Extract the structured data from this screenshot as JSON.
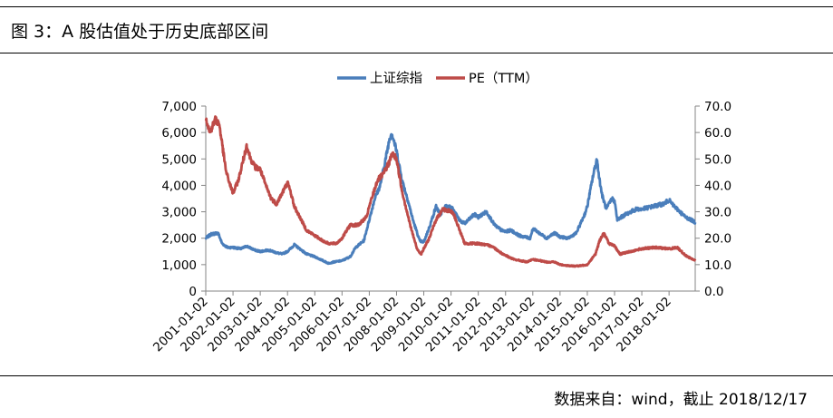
{
  "figure": {
    "caption": "图 3：A 股估值处于历史底部区间",
    "source": "数据来自：wind，截止 2018/12/17"
  },
  "chart_data": {
    "type": "line",
    "title": "",
    "legend_position": "top-center",
    "x_tick_labels": [
      "2001-01-02",
      "2002-01-02",
      "2003-01-02",
      "2004-01-02",
      "2005-01-02",
      "2006-01-02",
      "2007-01-02",
      "2008-01-02",
      "2009-01-02",
      "2010-01-02",
      "2011-01-02",
      "2012-01-02",
      "2013-01-02",
      "2014-01-02",
      "2015-01-02",
      "2016-01-02",
      "2017-01-02",
      "2018-01-02"
    ],
    "x_range": [
      2001.0,
      2018.96
    ],
    "y_left": {
      "label": "",
      "range": [
        0,
        7000
      ],
      "ticks": [
        "0",
        "1,000",
        "2,000",
        "3,000",
        "4,000",
        "5,000",
        "6,000",
        "7,000"
      ]
    },
    "y_right": {
      "label": "",
      "range": [
        0,
        70
      ],
      "ticks": [
        "0.0",
        "10.0",
        "20.0",
        "30.0",
        "40.0",
        "50.0",
        "60.0",
        "70.0"
      ]
    },
    "series": [
      {
        "name": "上证综指",
        "axis": "left",
        "color": "#4a7ebb",
        "x": [
          2001.0,
          2001.2,
          2001.45,
          2001.6,
          2001.8,
          2002.0,
          2002.3,
          2002.5,
          2002.8,
          2003.0,
          2003.3,
          2003.6,
          2003.8,
          2004.0,
          2004.25,
          2004.45,
          2004.7,
          2005.0,
          2005.3,
          2005.5,
          2005.7,
          2006.0,
          2006.3,
          2006.5,
          2006.8,
          2007.0,
          2007.2,
          2007.4,
          2007.6,
          2007.75,
          2007.82,
          2007.9,
          2008.0,
          2008.2,
          2008.4,
          2008.6,
          2008.85,
          2009.0,
          2009.2,
          2009.45,
          2009.6,
          2009.8,
          2010.0,
          2010.3,
          2010.5,
          2010.85,
          2011.0,
          2011.3,
          2011.6,
          2011.85,
          2012.0,
          2012.2,
          2012.5,
          2012.9,
          2013.0,
          2013.1,
          2013.5,
          2013.8,
          2014.0,
          2014.3,
          2014.6,
          2014.9,
          2015.0,
          2015.2,
          2015.35,
          2015.45,
          2015.55,
          2015.7,
          2015.9,
          2016.0,
          2016.1,
          2016.4,
          2016.8,
          2017.0,
          2017.4,
          2017.8,
          2018.0,
          2018.1,
          2018.4,
          2018.6,
          2018.8,
          2018.96
        ],
        "values": [
          2000,
          2150,
          2200,
          1800,
          1650,
          1650,
          1600,
          1700,
          1550,
          1500,
          1550,
          1450,
          1400,
          1500,
          1750,
          1600,
          1400,
          1300,
          1150,
          1050,
          1100,
          1150,
          1300,
          1650,
          1900,
          2700,
          3500,
          4000,
          5000,
          5800,
          6000,
          5700,
          5300,
          4200,
          3500,
          2700,
          1900,
          1850,
          2400,
          3200,
          2900,
          3200,
          3200,
          2700,
          2550,
          2900,
          2800,
          3000,
          2500,
          2300,
          2250,
          2300,
          2100,
          2000,
          2350,
          2300,
          2000,
          2200,
          2050,
          2000,
          2200,
          2900,
          3200,
          4300,
          5000,
          4200,
          3600,
          3100,
          3500,
          3400,
          2700,
          2900,
          3100,
          3100,
          3200,
          3300,
          3450,
          3300,
          3000,
          2800,
          2700,
          2600
        ]
      },
      {
        "name": "PE（TTM）",
        "axis": "right",
        "color": "#be4b48",
        "x": [
          2001.0,
          2001.15,
          2001.35,
          2001.5,
          2001.65,
          2001.75,
          2001.9,
          2002.0,
          2002.2,
          2002.5,
          2002.65,
          2002.8,
          2003.0,
          2003.2,
          2003.4,
          2003.6,
          2003.85,
          2004.0,
          2004.1,
          2004.25,
          2004.5,
          2004.7,
          2005.0,
          2005.3,
          2005.5,
          2005.8,
          2006.0,
          2006.3,
          2006.6,
          2006.9,
          2007.0,
          2007.3,
          2007.5,
          2007.7,
          2007.85,
          2008.0,
          2008.2,
          2008.5,
          2008.75,
          2008.9,
          2009.2,
          2009.45,
          2009.7,
          2010.0,
          2010.1,
          2010.5,
          2011.0,
          2011.5,
          2011.9,
          2012.3,
          2012.8,
          2013.0,
          2013.5,
          2013.8,
          2014.0,
          2014.4,
          2014.7,
          2015.0,
          2015.3,
          2015.45,
          2015.6,
          2015.8,
          2016.0,
          2016.2,
          2016.6,
          2017.0,
          2017.5,
          2018.0,
          2018.3,
          2018.6,
          2018.96
        ],
        "values": [
          66,
          60,
          65,
          63,
          52,
          45,
          40,
          37,
          42,
          55,
          50,
          47,
          46,
          40,
          35,
          33,
          38,
          41,
          38,
          32,
          27,
          23,
          21,
          19,
          18,
          18,
          20,
          25,
          25,
          28,
          32,
          42,
          44,
          48,
          52,
          50,
          38,
          25,
          16,
          14,
          20,
          27,
          31,
          30,
          29,
          18,
          18,
          17,
          14,
          12,
          11,
          12,
          11,
          11,
          10,
          9.5,
          9.5,
          10,
          14,
          19,
          22,
          18,
          17,
          14,
          15,
          16,
          16.5,
          16,
          16.5,
          13.5,
          11.5
        ]
      }
    ]
  }
}
